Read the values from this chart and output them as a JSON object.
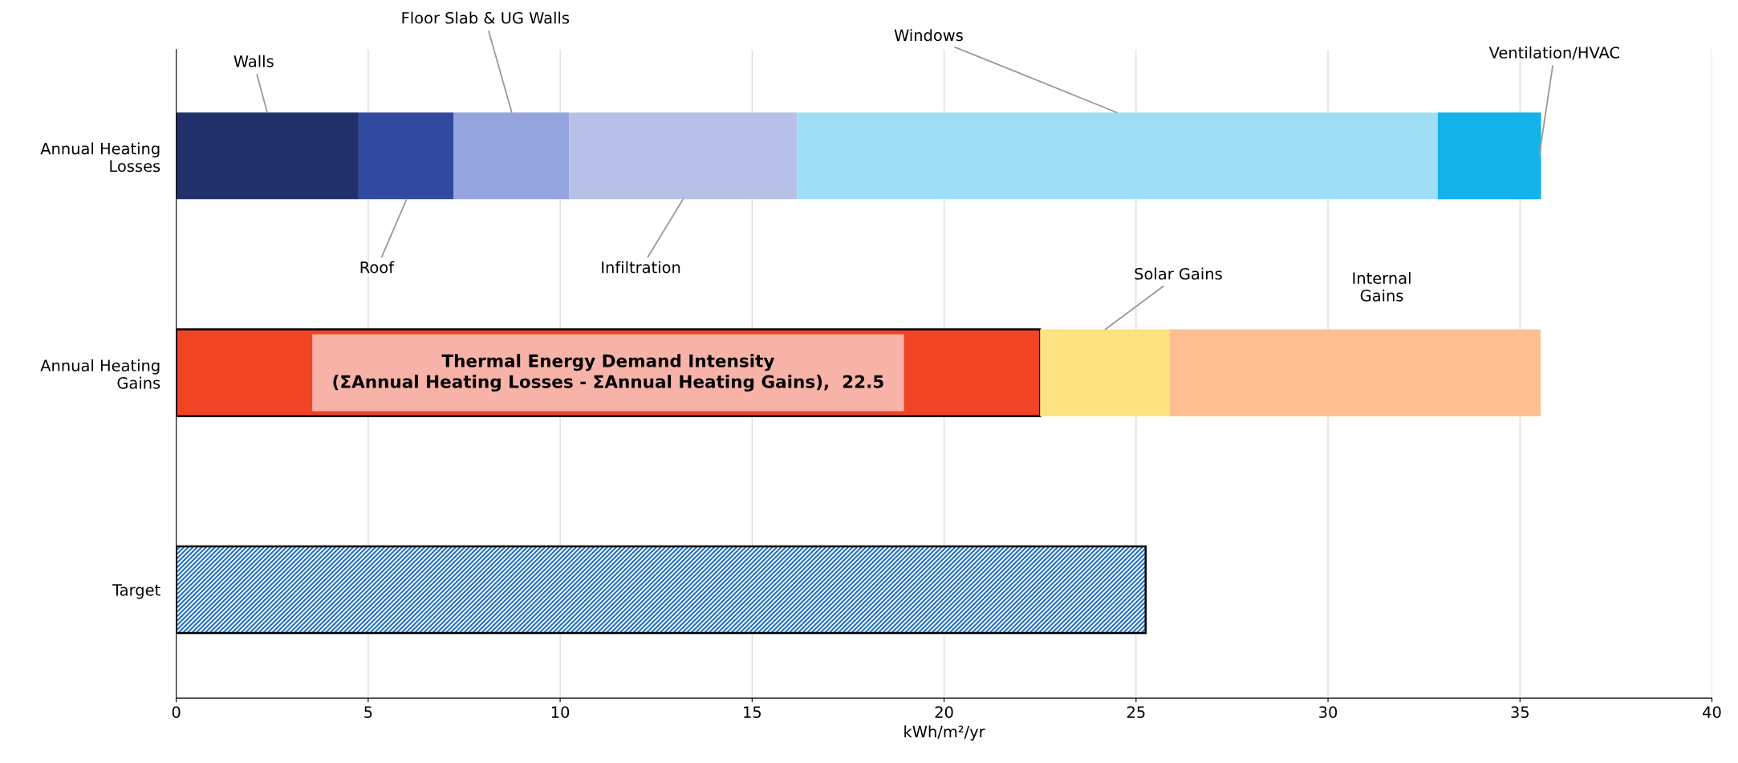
{
  "chart_data": {
    "type": "bar",
    "orientation": "horizontal",
    "stacked": true,
    "categories": [
      "Annual Heating\nLosses",
      "Annual Heating\nGains",
      "Target"
    ],
    "series": [
      {
        "name": "Walls",
        "color": "#21306b",
        "values": [
          4.75,
          null,
          null
        ]
      },
      {
        "name": "Roof",
        "color": "#2f4a9f",
        "values": [
          2.48,
          null,
          null
        ]
      },
      {
        "name": "Floor Slab & UG Walls",
        "color": "#95a5dd",
        "values": [
          3.01,
          null,
          null
        ]
      },
      {
        "name": "Infiltration",
        "color": "#b7c1e7",
        "values": [
          5.94,
          null,
          null
        ]
      },
      {
        "name": "Windows",
        "color": "#9fdff6",
        "values": [
          16.68,
          null,
          null
        ]
      },
      {
        "name": "Ventilation/HVAC",
        "color": "#13b2e8",
        "values": [
          2.69,
          null,
          null
        ]
      },
      {
        "color": "#f04425",
        "values": [
          null,
          22.5,
          null
        ]
      },
      {
        "name": "Solar Gains",
        "color": "#fde281",
        "values": [
          null,
          3.38,
          null
        ]
      },
      {
        "name": "Internal\nGains",
        "color": "#fdbf91",
        "values": [
          null,
          9.66,
          null
        ]
      },
      {
        "color": "#1f6fc6",
        "values": [
          null,
          null,
          25.25
        ]
      }
    ],
    "annotations": [
      "Thermal Energy Demand Intensity\n(ΣAnnual Heating Losses - ΣAnnual Heating Gains),  22.5"
    ],
    "xlabel": "kWh/m²/yr",
    "xlim": [
      0,
      40
    ],
    "xticks": [
      0,
      5,
      10,
      15,
      20,
      25,
      30,
      35,
      40
    ],
    "grid": "x",
    "legend": false
  }
}
